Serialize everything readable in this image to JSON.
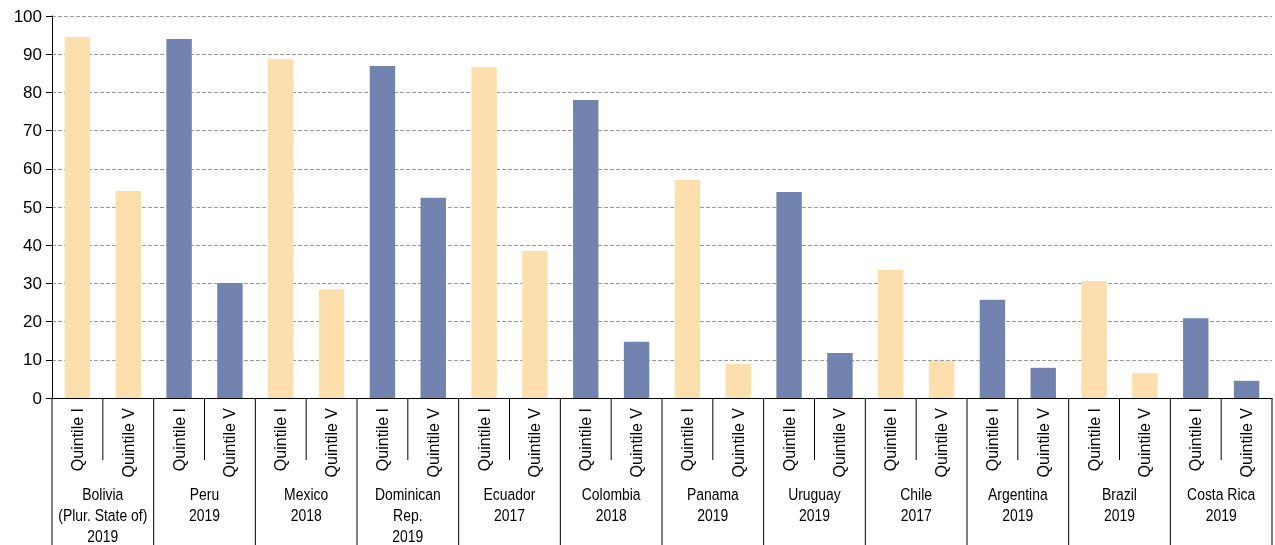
{
  "chart_data": {
    "type": "bar",
    "categories": [
      "Quintile I",
      "Quintile V",
      "Quintile I",
      "Quintile V",
      "Quintile I",
      "Quintile V",
      "Quintile I",
      "Quintile V",
      "Quintile I",
      "Quintile V",
      "Quintile I",
      "Quintile V",
      "Quintile I",
      "Quintile V",
      "Quintile I",
      "Quintile V",
      "Quintile I",
      "Quintile V",
      "Quintile I",
      "Quintile V",
      "Quintile I",
      "Quintile V",
      "Quintile I",
      "Quintile V"
    ],
    "values": [
      94.5,
      54.2,
      94.0,
      30.1,
      88.7,
      28.5,
      86.9,
      52.4,
      86.6,
      38.5,
      78.0,
      14.7,
      57.1,
      8.9,
      53.9,
      11.8,
      33.5,
      9.7,
      25.7,
      7.9,
      30.6,
      6.5,
      20.9,
      4.5
    ],
    "colors": [
      "#fddfad",
      "#fddfad",
      "#7383b0",
      "#7383b0",
      "#fddfad",
      "#fddfad",
      "#7383b0",
      "#7383b0",
      "#fddfad",
      "#fddfad",
      "#7383b0",
      "#7383b0",
      "#fddfad",
      "#fddfad",
      "#7383b0",
      "#7383b0",
      "#fddfad",
      "#fddfad",
      "#7383b0",
      "#7383b0",
      "#fddfad",
      "#fddfad",
      "#7383b0",
      "#7383b0"
    ],
    "annotations": [
      "Bolivia\n(Plur. State of)\n2019",
      "Peru\n2019",
      "Mexico\n2018",
      "Dominican\nRep.\n2019",
      "Ecuador\n2017",
      "Colombia\n2018",
      "Panama\n2019",
      "Uruguay\n2019",
      "Chile\n2017",
      "Argentina\n2019",
      "Brazil\n2019",
      "Costa Rica\n2019"
    ],
    "ylim": [
      0,
      100
    ],
    "yticks": [
      0,
      10,
      20,
      30,
      40,
      50,
      60,
      70,
      80,
      90,
      100
    ],
    "grid": "y"
  }
}
